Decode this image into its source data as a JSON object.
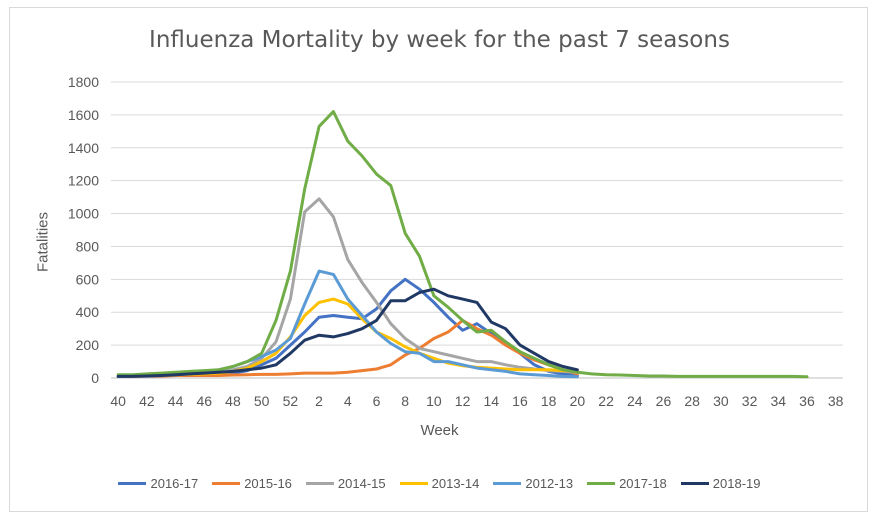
{
  "chart_data": {
    "type": "line",
    "title": "Influenza Mortality by week for the past 7 seasons",
    "xlabel": "Week",
    "ylabel": "Fatalities",
    "ylim": [
      0,
      1800
    ],
    "yticks": [
      0,
      200,
      400,
      600,
      800,
      1000,
      1200,
      1400,
      1600,
      1800
    ],
    "x_tick_labels": [
      "40",
      "42",
      "44",
      "46",
      "48",
      "50",
      "52",
      "2",
      "4",
      "6",
      "8",
      "10",
      "12",
      "14",
      "16",
      "18",
      "20",
      "22",
      "24",
      "26",
      "28",
      "30",
      "32",
      "34",
      "36",
      "38"
    ],
    "weeks": [
      "40",
      "41",
      "42",
      "43",
      "44",
      "45",
      "46",
      "47",
      "48",
      "49",
      "50",
      "51",
      "52",
      "1",
      "2",
      "3",
      "4",
      "5",
      "6",
      "7",
      "8",
      "9",
      "10",
      "11",
      "12",
      "13",
      "14",
      "15",
      "16",
      "17",
      "18",
      "19",
      "20",
      "21",
      "22",
      "23",
      "24",
      "25",
      "26",
      "27",
      "28",
      "29",
      "30",
      "31",
      "32",
      "33",
      "34",
      "35",
      "36",
      "37",
      "38"
    ],
    "grid": true,
    "legend_position": "bottom",
    "series": [
      {
        "name": "2016-17",
        "color": "#4472c4",
        "values": [
          10,
          12,
          15,
          18,
          20,
          22,
          25,
          28,
          30,
          45,
          80,
          120,
          200,
          280,
          370,
          380,
          370,
          360,
          420,
          530,
          600,
          540,
          460,
          370,
          290,
          330,
          270,
          220,
          150,
          80,
          40,
          25,
          15
        ]
      },
      {
        "name": "2015-16",
        "color": "#ed7d31",
        "values": [
          10,
          10,
          12,
          12,
          15,
          15,
          15,
          15,
          18,
          20,
          22,
          22,
          25,
          30,
          30,
          30,
          35,
          45,
          55,
          80,
          140,
          180,
          240,
          280,
          350,
          300,
          260,
          200,
          150,
          110,
          80,
          50,
          25
        ]
      },
      {
        "name": "2014-15",
        "color": "#a5a5a5",
        "values": [
          10,
          12,
          15,
          18,
          20,
          25,
          30,
          35,
          50,
          70,
          120,
          220,
          480,
          1010,
          1090,
          980,
          720,
          580,
          460,
          330,
          240,
          180,
          160,
          140,
          120,
          100,
          100,
          80,
          65,
          55,
          45,
          40,
          35
        ]
      },
      {
        "name": "2013-14",
        "color": "#ffc000",
        "values": [
          10,
          12,
          15,
          18,
          20,
          22,
          25,
          30,
          40,
          60,
          100,
          150,
          250,
          380,
          460,
          480,
          450,
          360,
          280,
          240,
          190,
          150,
          120,
          90,
          75,
          65,
          60,
          55,
          50,
          50,
          50,
          45,
          40
        ]
      },
      {
        "name": "2012-13",
        "color": "#5b9bd5",
        "values": [
          10,
          12,
          15,
          18,
          20,
          25,
          35,
          50,
          70,
          100,
          130,
          170,
          240,
          450,
          650,
          630,
          480,
          380,
          280,
          210,
          160,
          150,
          100,
          100,
          80,
          60,
          50,
          40,
          25,
          20,
          15,
          10,
          8
        ]
      },
      {
        "name": "2017-18",
        "color": "#70ad47",
        "values": [
          20,
          20,
          25,
          30,
          35,
          40,
          45,
          50,
          70,
          100,
          150,
          350,
          650,
          1150,
          1530,
          1620,
          1440,
          1350,
          1240,
          1170,
          880,
          740,
          500,
          430,
          350,
          280,
          290,
          220,
          160,
          120,
          80,
          50,
          35,
          25,
          20,
          18,
          15,
          12,
          12,
          10,
          10,
          10,
          10,
          10,
          10,
          10,
          10,
          10,
          8
        ]
      },
      {
        "name": "2018-19",
        "color": "#203864",
        "values": [
          10,
          10,
          12,
          15,
          20,
          25,
          30,
          35,
          40,
          50,
          60,
          80,
          150,
          230,
          260,
          250,
          270,
          300,
          350,
          470,
          470,
          520,
          540,
          500,
          480,
          460,
          340,
          300,
          200,
          150,
          100,
          70,
          50
        ]
      }
    ]
  }
}
